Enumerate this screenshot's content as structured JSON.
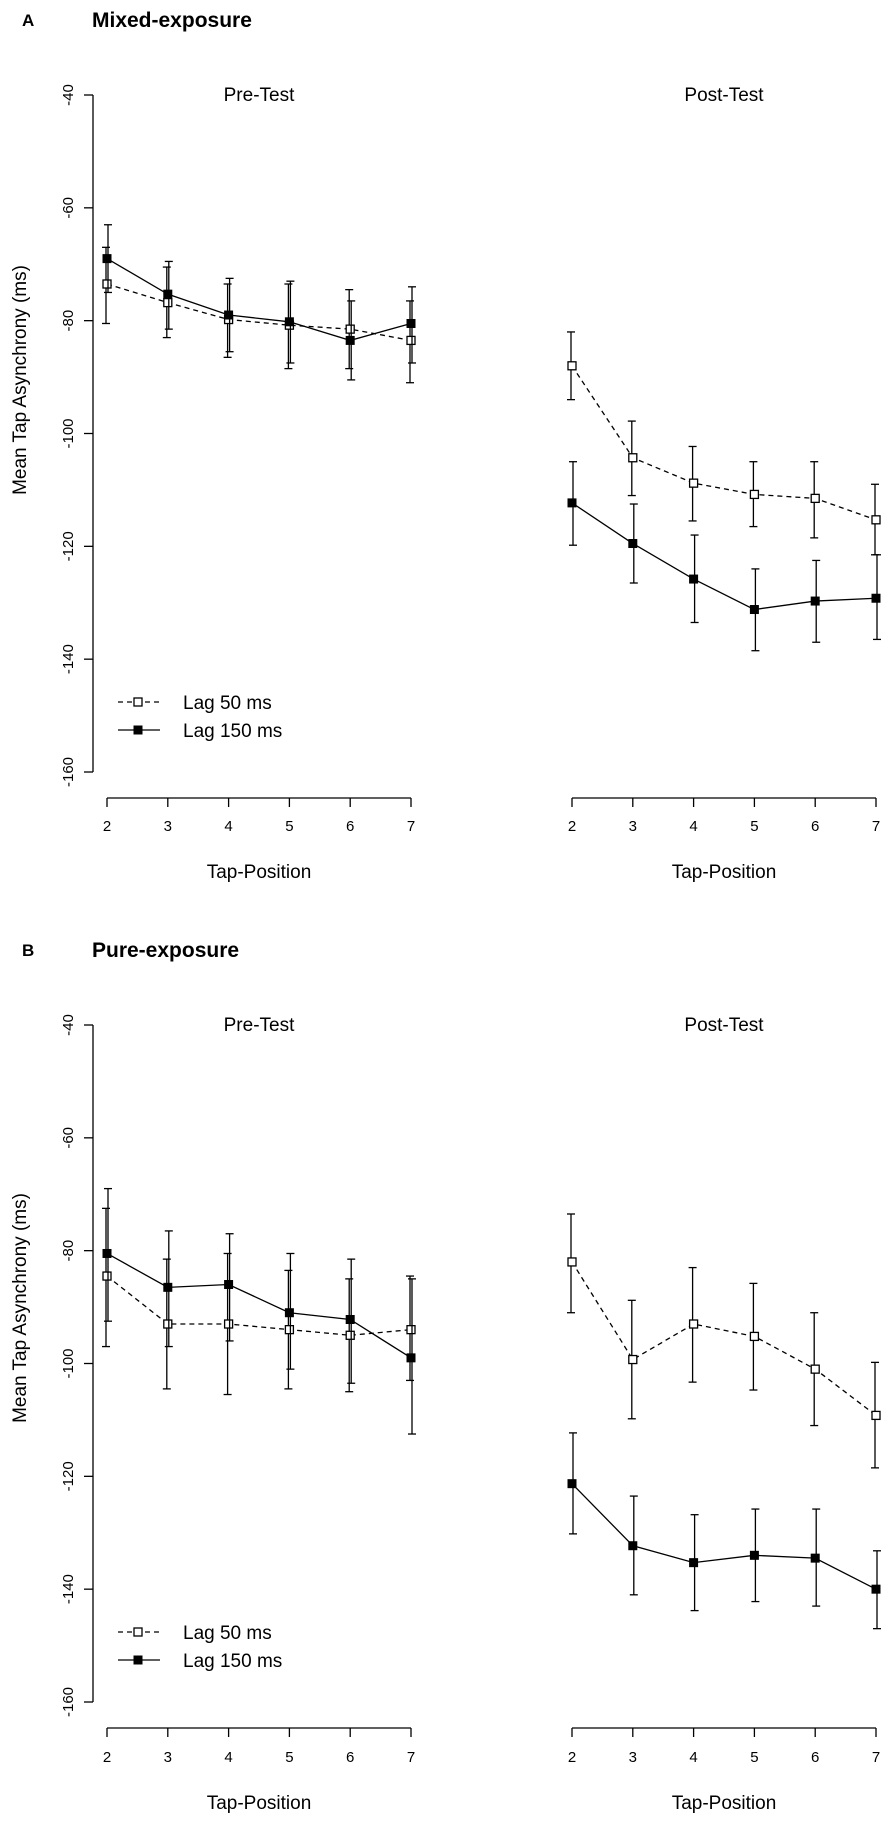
{
  "chart_data": [
    {
      "type": "line",
      "panel_letter": "A",
      "title": "Mixed-exposure",
      "ylabel": "Mean Tap Asynchrony  (ms)",
      "ylim": [
        -160,
        -40
      ],
      "yticks": [
        -40,
        -60,
        -80,
        -100,
        -120,
        -140,
        -160
      ],
      "legend": {
        "placement": "bottom-left",
        "entries": [
          "Lag 50 ms",
          "Lag 150 ms"
        ]
      },
      "subplots": [
        {
          "title": "Pre-Test",
          "xlabel": "Tap-Position",
          "x": [
            2,
            3,
            4,
            5,
            6,
            7
          ],
          "series": [
            {
              "name": "Lag 50 ms",
              "values": [
                -73.5,
                -76.8,
                -79.8,
                -80.8,
                -81.5,
                -83.5
              ],
              "lower": [
                -80.5,
                -83,
                -86.5,
                -88.5,
                -88.5,
                -91
              ],
              "upper": [
                -67,
                -70.5,
                -73.5,
                -73.5,
                -74.5,
                -76.5
              ]
            },
            {
              "name": "Lag 150 ms",
              "values": [
                -69,
                -75.3,
                -79,
                -80.2,
                -83.5,
                -80.5
              ],
              "lower": [
                -75,
                -81.5,
                -85.5,
                -87.5,
                -90.5,
                -87.5
              ],
              "upper": [
                -63,
                -69.5,
                -72.5,
                -73,
                -76.5,
                -74
              ]
            }
          ]
        },
        {
          "title": "Post-Test",
          "xlabel": "Tap-Position",
          "x": [
            2,
            3,
            4,
            5,
            6,
            7
          ],
          "series": [
            {
              "name": "Lag 50 ms",
              "values": [
                -88,
                -104.3,
                -108.8,
                -110.8,
                -111.5,
                -115.3
              ],
              "lower": [
                -94,
                -111,
                -115.5,
                -116.5,
                -118.5,
                -121.5
              ],
              "upper": [
                -82,
                -97.8,
                -102.3,
                -105,
                -105,
                -109
              ]
            },
            {
              "name": "Lag 150 ms",
              "values": [
                -112.3,
                -119.5,
                -125.8,
                -131.2,
                -129.7,
                -129.2
              ],
              "lower": [
                -119.8,
                -126.5,
                -133.5,
                -138.5,
                -137,
                -136.5
              ],
              "upper": [
                -105,
                -112.5,
                -118,
                -124,
                -122.5,
                -121.5
              ]
            }
          ]
        }
      ]
    },
    {
      "type": "line",
      "panel_letter": "B",
      "title": "Pure-exposure",
      "ylabel": "Mean Tap Asynchrony  (ms)",
      "ylim": [
        -160,
        -40
      ],
      "yticks": [
        -40,
        -60,
        -80,
        -100,
        -120,
        -140,
        -160
      ],
      "legend": {
        "placement": "bottom-left",
        "entries": [
          "Lag 50 ms",
          "Lag 150 ms"
        ]
      },
      "subplots": [
        {
          "title": "Pre-Test",
          "xlabel": "Tap-Position",
          "x": [
            2,
            3,
            4,
            5,
            6,
            7
          ],
          "series": [
            {
              "name": "Lag 50 ms",
              "values": [
                -84.5,
                -93,
                -93,
                -94,
                -95,
                -94
              ],
              "lower": [
                -97,
                -104.5,
                -105.5,
                -104.5,
                -105,
                -103
              ],
              "upper": [
                -72.5,
                -81.5,
                -80.5,
                -83.5,
                -85,
                -84.5
              ]
            },
            {
              "name": "Lag 150 ms",
              "values": [
                -80.5,
                -86.5,
                -86,
                -91,
                -92.2,
                -99
              ],
              "lower": [
                -92.5,
                -97,
                -96,
                -101,
                -103.5,
                -112.5
              ],
              "upper": [
                -69,
                -76.5,
                -77,
                -80.5,
                -81.5,
                -85
              ]
            }
          ]
        },
        {
          "title": "Post-Test",
          "xlabel": "Tap-Position",
          "x": [
            2,
            3,
            4,
            5,
            6,
            7
          ],
          "series": [
            {
              "name": "Lag 50 ms",
              "values": [
                -82,
                -99.3,
                -93,
                -95.2,
                -101,
                -109.2
              ],
              "lower": [
                -91,
                -109.8,
                -103.3,
                -104.7,
                -111,
                -118.5
              ],
              "upper": [
                -73.5,
                -88.8,
                -83,
                -85.8,
                -91,
                -99.8
              ]
            },
            {
              "name": "Lag 150 ms",
              "values": [
                -121.3,
                -132.3,
                -135.3,
                -134,
                -134.5,
                -140
              ],
              "lower": [
                -130.2,
                -141,
                -143.8,
                -142.2,
                -143,
                -147
              ],
              "upper": [
                -112.3,
                -123.5,
                -126.8,
                -125.8,
                -125.8,
                -133.2
              ]
            }
          ]
        }
      ]
    }
  ]
}
